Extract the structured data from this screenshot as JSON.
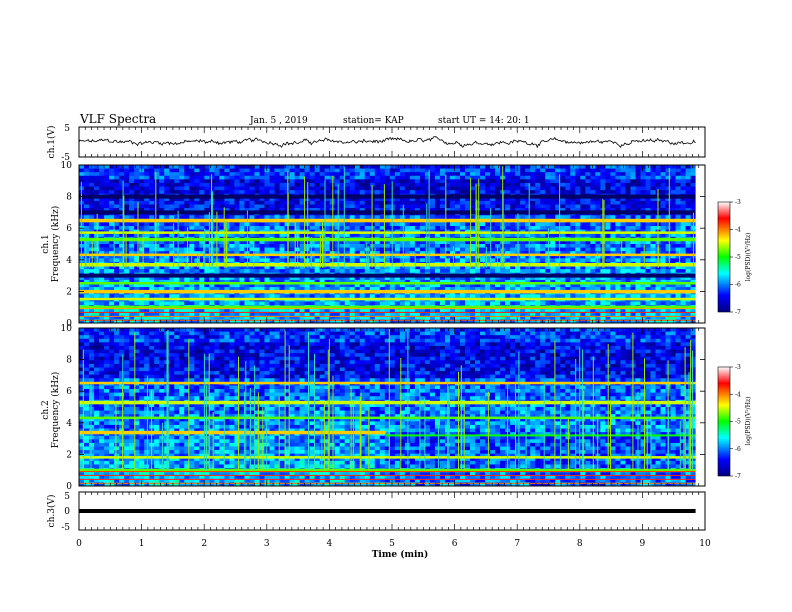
{
  "header": {
    "title": "VLF Spectra",
    "date": "Jan. 5 , 2019",
    "station": "station= KAP",
    "start": "start UT =  14: 20: 1"
  },
  "colorbar": {
    "label": "log(PSD)(V²/Hz)",
    "ticks": [
      "-3",
      "-4",
      "-5",
      "-6",
      "-7"
    ],
    "range": [
      -7,
      -3
    ]
  },
  "chart_data": [
    {
      "type": "line",
      "name": "ch1-waveform",
      "ylabel": "ch.1(V)",
      "ylim": [
        -5,
        5
      ],
      "yticks": [
        "5",
        "-5"
      ],
      "xlim": [
        0,
        10
      ],
      "mean_level": 0,
      "approx_range": [
        -1.5,
        1.5
      ]
    },
    {
      "type": "heatmap",
      "name": "ch1-spectrogram",
      "ylabel": "ch.1\nFrequency (kHz)",
      "ylim": [
        0,
        10
      ],
      "yticks": [
        "0",
        "2",
        "4",
        "6",
        "8",
        "10"
      ],
      "xlim": [
        0,
        9.85
      ],
      "strong_bands_khz": [
        1.0,
        1.5,
        2.0,
        2.5,
        3.7,
        4.3,
        5.3,
        5.7,
        6.5
      ],
      "dark_bands_khz": [
        3.0,
        7.0,
        8.0
      ]
    },
    {
      "type": "heatmap",
      "name": "ch2-spectrogram",
      "ylabel": "ch.2\nFrequency (kHz)",
      "ylim": [
        0,
        10
      ],
      "yticks": [
        "0",
        "2",
        "4",
        "6",
        "8",
        "10"
      ],
      "xlim": [
        0,
        9.85
      ],
      "strong_bands_khz": [
        1.0,
        1.8,
        3.4,
        4.3,
        5.3,
        6.5
      ],
      "band_change_minute": 4.9
    },
    {
      "type": "line",
      "name": "ch3-level",
      "ylabel": "ch.3(V)",
      "ylim": [
        -5,
        5
      ],
      "yticks": [
        "5",
        "0",
        "-5"
      ],
      "xlim": [
        0,
        9.85
      ],
      "level": 0
    }
  ],
  "xaxis": {
    "label": "Time (min)",
    "ticks": [
      "0",
      "1",
      "2",
      "3",
      "4",
      "5",
      "6",
      "7",
      "8",
      "9",
      "10"
    ],
    "range": [
      0,
      10
    ]
  }
}
